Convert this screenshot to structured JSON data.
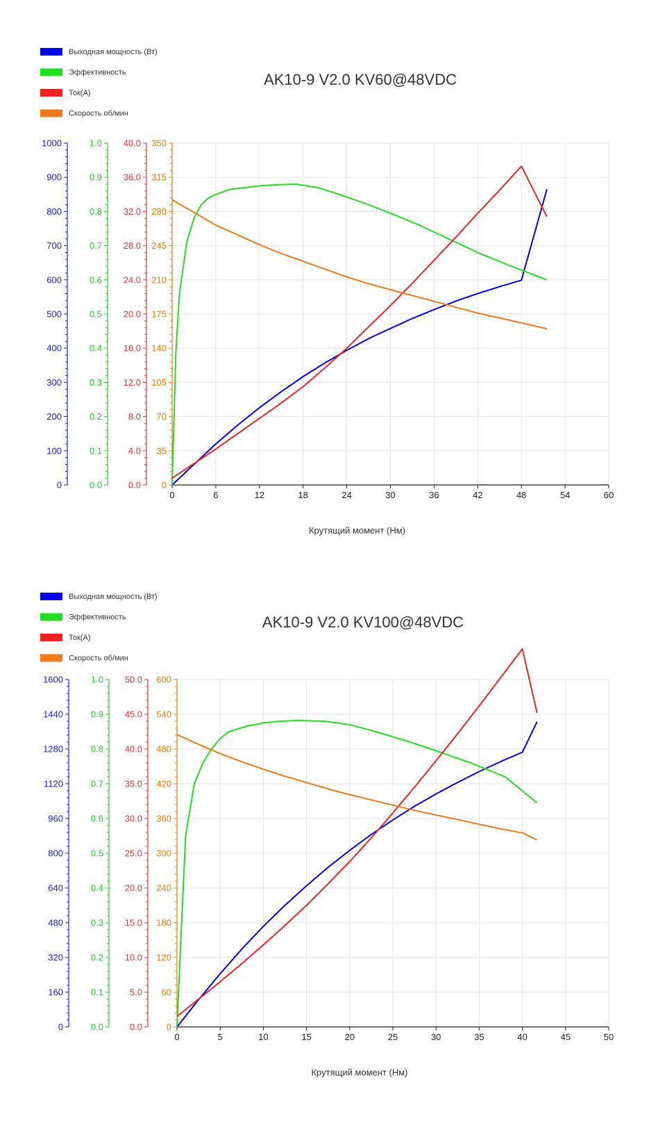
{
  "chart_data": [
    {
      "type": "line",
      "title": "AK10-9 V2.0 KV60@48VDC",
      "xlabel": "Крутящий момент (Нм)",
      "x_ticks": [
        "0",
        "6",
        "12",
        "18",
        "24",
        "30",
        "36",
        "42",
        "48",
        "54",
        "60"
      ],
      "xlim": [
        0,
        60
      ],
      "grid": true,
      "legend_position": "top-left",
      "y_axes": [
        {
          "id": "power",
          "color": "#1a1ae6",
          "ylim": [
            0,
            1000
          ],
          "ticks": [
            "0",
            "100",
            "200",
            "300",
            "400",
            "500",
            "600",
            "700",
            "800",
            "900",
            "1000"
          ]
        },
        {
          "id": "eff",
          "color": "#22cc22",
          "ylim": [
            0,
            1.0
          ],
          "ticks": [
            "0.0",
            "0.1",
            "0.2",
            "0.3",
            "0.4",
            "0.5",
            "0.6",
            "0.7",
            "0.8",
            "0.9",
            "1.0"
          ]
        },
        {
          "id": "current",
          "color": "#e63232",
          "ylim": [
            0,
            40
          ],
          "ticks": [
            "0.0",
            "4.0",
            "8.0",
            "12.0",
            "16.0",
            "20.0",
            "24.0",
            "28.0",
            "32.0",
            "36.0",
            "40.0"
          ]
        },
        {
          "id": "speed",
          "color": "#f07800",
          "ylim": [
            0,
            350
          ],
          "ticks": [
            "0",
            "35",
            "70",
            "105",
            "140",
            "175",
            "210",
            "245",
            "280",
            "315",
            "350"
          ]
        }
      ],
      "series": [
        {
          "name": "Выходная мощность (Вт)",
          "axis": "power",
          "color": "#0000ee",
          "x": [
            0,
            3,
            6,
            9,
            12,
            15,
            18,
            21,
            24,
            27,
            30,
            33,
            36,
            39,
            42,
            45,
            48,
            51.5
          ],
          "y": [
            0,
            60,
            120,
            175,
            226,
            273,
            317,
            357,
            394,
            428,
            458,
            487,
            513,
            538,
            560,
            580,
            599,
            865
          ]
        },
        {
          "name": "Эффективность",
          "axis": "eff",
          "color": "#22dd22",
          "x": [
            0,
            0.5,
            1,
            2,
            3,
            4,
            5,
            6,
            8,
            10,
            12,
            14,
            17,
            20,
            23,
            27,
            30,
            34,
            38,
            42,
            46,
            51.5
          ],
          "y": [
            0.0,
            0.38,
            0.56,
            0.71,
            0.78,
            0.82,
            0.84,
            0.85,
            0.865,
            0.87,
            0.875,
            0.878,
            0.88,
            0.87,
            0.85,
            0.82,
            0.795,
            0.76,
            0.72,
            0.68,
            0.645,
            0.6
          ]
        },
        {
          "name": "Ток(А)",
          "axis": "current",
          "color": "#ee2222",
          "x": [
            0,
            3,
            6,
            9,
            12,
            15,
            18,
            21,
            24,
            27,
            30,
            33,
            36,
            39,
            42,
            45,
            48,
            51.5
          ],
          "y": [
            0.8,
            2.5,
            4.2,
            6.0,
            7.8,
            9.6,
            11.5,
            13.7,
            16.0,
            18.5,
            21.0,
            23.6,
            26.3,
            29.0,
            31.8,
            34.5,
            37.3,
            31.4
          ]
        },
        {
          "name": "Скорость об/мин",
          "axis": "speed",
          "color": "#f07818",
          "x": [
            0,
            3,
            6,
            9,
            12,
            15,
            18,
            21,
            24,
            27,
            30,
            33,
            36,
            39,
            42,
            45,
            48,
            51.5
          ],
          "y": [
            292,
            279,
            266,
            256,
            246,
            237,
            229,
            221,
            213,
            206,
            200,
            194,
            188,
            182,
            176,
            171,
            166,
            160
          ]
        }
      ]
    },
    {
      "type": "line",
      "title": "AK10-9 V2.0 KV100@48VDC",
      "xlabel": "Крутящий момент (Нм)",
      "x_ticks": [
        "0",
        "5",
        "10",
        "15",
        "20",
        "25",
        "30",
        "35",
        "40",
        "45",
        "50"
      ],
      "xlim": [
        0,
        50
      ],
      "grid": true,
      "legend_position": "top-left",
      "y_axes": [
        {
          "id": "power",
          "color": "#1a1ae6",
          "ylim": [
            0,
            1600
          ],
          "ticks": [
            "0",
            "160",
            "320",
            "480",
            "640",
            "800",
            "960",
            "1120",
            "1280",
            "1440",
            "1600"
          ]
        },
        {
          "id": "eff",
          "color": "#22cc22",
          "ylim": [
            0,
            1.0
          ],
          "ticks": [
            "0.0",
            "0.1",
            "0.2",
            "0.3",
            "0.4",
            "0.5",
            "0.6",
            "0.7",
            "0.8",
            "0.9",
            "1.0"
          ]
        },
        {
          "id": "current",
          "color": "#e63232",
          "ylim": [
            0,
            50
          ],
          "ticks": [
            "0.0",
            "5.0",
            "10.0",
            "15.0",
            "20.0",
            "25.0",
            "30.0",
            "35.0",
            "40.0",
            "45.0",
            "50.0"
          ]
        },
        {
          "id": "speed",
          "color": "#f07800",
          "ylim": [
            0,
            600
          ],
          "ticks": [
            "0",
            "60",
            "120",
            "180",
            "240",
            "300",
            "360",
            "420",
            "480",
            "540",
            "600"
          ]
        }
      ],
      "series": [
        {
          "name": "Выходная мощность (Вт)",
          "axis": "power",
          "color": "#0000ee",
          "x": [
            0,
            2.5,
            5,
            7.5,
            10,
            12.5,
            15,
            17.5,
            20,
            22.5,
            25,
            27.5,
            30,
            32.5,
            35,
            37.5,
            40,
            41.7
          ],
          "y": [
            0,
            125,
            245,
            358,
            463,
            560,
            650,
            735,
            813,
            886,
            953,
            1016,
            1073,
            1126,
            1176,
            1222,
            1265,
            1405
          ]
        },
        {
          "name": "Эффективность",
          "axis": "eff",
          "color": "#22dd22",
          "x": [
            0,
            0.5,
            1,
            2,
            3,
            4,
            5,
            6,
            8,
            10,
            12,
            14,
            17,
            20,
            23,
            27,
            30,
            34,
            38,
            41.7
          ],
          "y": [
            0.0,
            0.28,
            0.55,
            0.7,
            0.76,
            0.8,
            0.83,
            0.85,
            0.865,
            0.875,
            0.88,
            0.882,
            0.88,
            0.87,
            0.85,
            0.82,
            0.795,
            0.76,
            0.72,
            0.645
          ]
        },
        {
          "name": "Ток(А)",
          "axis": "current",
          "color": "#ee2222",
          "x": [
            0,
            2.5,
            5,
            7.5,
            10,
            12.5,
            15,
            17.5,
            20,
            22.5,
            25,
            27.5,
            30,
            32.5,
            35,
            37.5,
            40,
            41.7
          ],
          "y": [
            1.5,
            4.0,
            6.5,
            9.1,
            11.8,
            14.6,
            17.5,
            20.6,
            23.8,
            27.2,
            30.8,
            34.5,
            38.3,
            42.2,
            46.2,
            50.3,
            54.4,
            45.2
          ]
        },
        {
          "name": "Скорость об/мин",
          "axis": "speed",
          "color": "#f07818",
          "x": [
            0,
            2.5,
            5,
            7.5,
            10,
            12.5,
            15,
            17.5,
            20,
            22.5,
            25,
            27.5,
            30,
            32.5,
            35,
            37.5,
            40,
            41.7
          ],
          "y": [
            505,
            488,
            472,
            458,
            445,
            433,
            422,
            411,
            401,
            392,
            383,
            374,
            366,
            358,
            350,
            342,
            335,
            323
          ]
        }
      ]
    }
  ]
}
